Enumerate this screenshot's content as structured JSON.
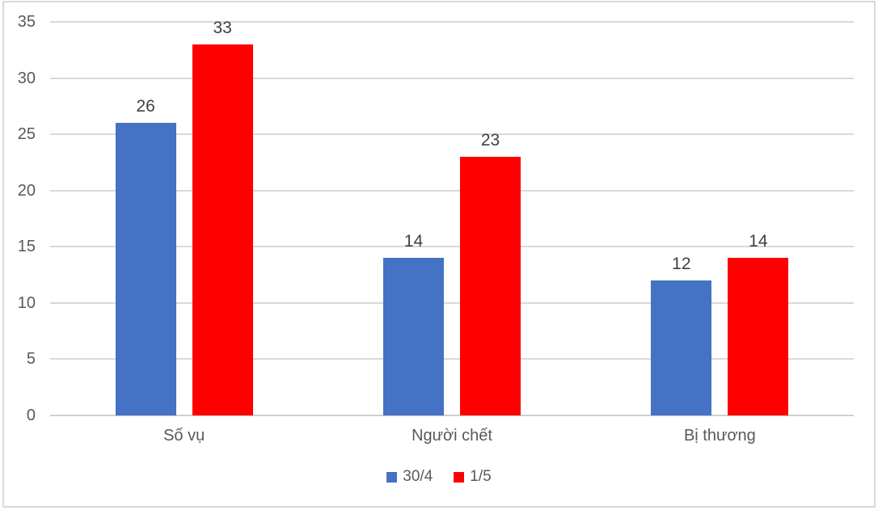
{
  "chart": {
    "background": "#ffffff",
    "frame_color": "#d9d9d9",
    "gridline_color": "#d9d9d9",
    "tick_label_color": "#595959",
    "data_label_color": "#404040"
  },
  "chart_data": {
    "type": "bar",
    "title": "",
    "xlabel": "",
    "ylabel": "",
    "categories": [
      "Số vụ",
      "Người chết",
      "Bị thương"
    ],
    "series": [
      {
        "name": "30/4",
        "color": "#4472C4",
        "values": [
          26,
          14,
          12
        ]
      },
      {
        "name": "1/5",
        "color": "#FF0000",
        "values": [
          33,
          23,
          14
        ]
      }
    ],
    "ylim": [
      0,
      35
    ],
    "yticks": [
      0,
      5,
      10,
      15,
      20,
      25,
      30,
      35
    ],
    "grid": true,
    "data_labels": true,
    "legend_position": "bottom"
  }
}
